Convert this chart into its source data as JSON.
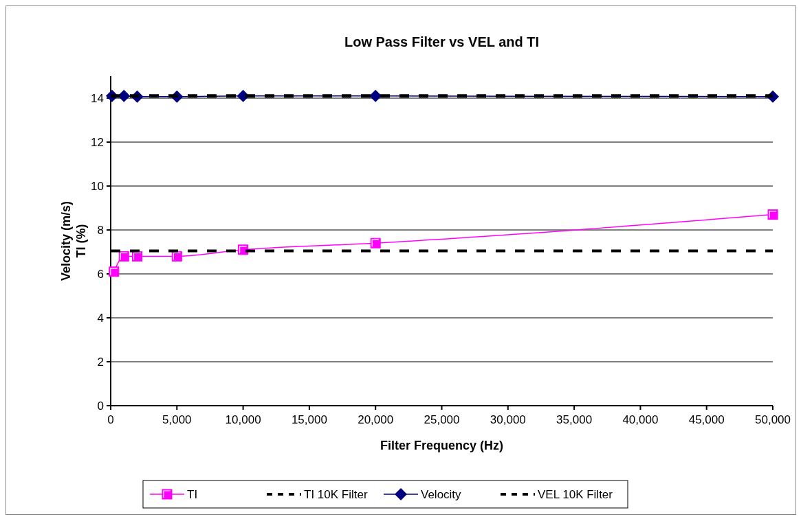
{
  "chart_data": {
    "type": "line",
    "title": "Low Pass Filter vs VEL and TI",
    "xlabel": "Filter Frequency (Hz)",
    "ylabel": "Velocity (m/s)\nTI (%)",
    "xlim": [
      0,
      50000
    ],
    "xticks": [
      0,
      {
        "value": 5000,
        "label": "5,000"
      },
      {
        "value": 10000,
        "label": "10,000"
      },
      {
        "value": 15000,
        "label": "15,000"
      },
      {
        "value": 20000,
        "label": "20,000"
      },
      {
        "value": 25000,
        "label": "25,000"
      },
      {
        "value": 30000,
        "label": "30,000"
      },
      {
        "value": 35000,
        "label": "35,000"
      },
      {
        "value": 40000,
        "label": "40,000"
      },
      {
        "value": 45000,
        "label": "45,000"
      },
      {
        "value": 50000,
        "label": "50,000"
      }
    ],
    "ylim": [
      0,
      15
    ],
    "yticks": [
      0,
      2,
      4,
      6,
      8,
      10,
      12,
      14
    ],
    "grid": "y",
    "legend": "bottom",
    "series": [
      {
        "name": "TI",
        "color": "#ff00ff",
        "marker": "square",
        "line_style": "solid",
        "x": [
          250,
          1000,
          2000,
          5000,
          10000,
          20000,
          50000
        ],
        "values": [
          6.1,
          6.8,
          6.8,
          6.8,
          7.1,
          7.4,
          8.7
        ]
      },
      {
        "name": "TI 10K Filter",
        "color": "#000000",
        "marker": "none",
        "line_style": "dashed",
        "x": [
          0,
          50000
        ],
        "values": [
          7.05,
          7.05
        ]
      },
      {
        "name": "Velocity",
        "color": "#000080",
        "marker": "diamond",
        "line_style": "solid",
        "x": [
          100,
          1000,
          2000,
          5000,
          10000,
          20000,
          50000
        ],
        "values": [
          14.1,
          14.1,
          14.07,
          14.07,
          14.1,
          14.1,
          14.07
        ]
      },
      {
        "name": "VEL 10K Filter",
        "color": "#000000",
        "marker": "none",
        "line_style": "dashed",
        "x": [
          0,
          50000
        ],
        "values": [
          14.1,
          14.1
        ]
      }
    ]
  }
}
